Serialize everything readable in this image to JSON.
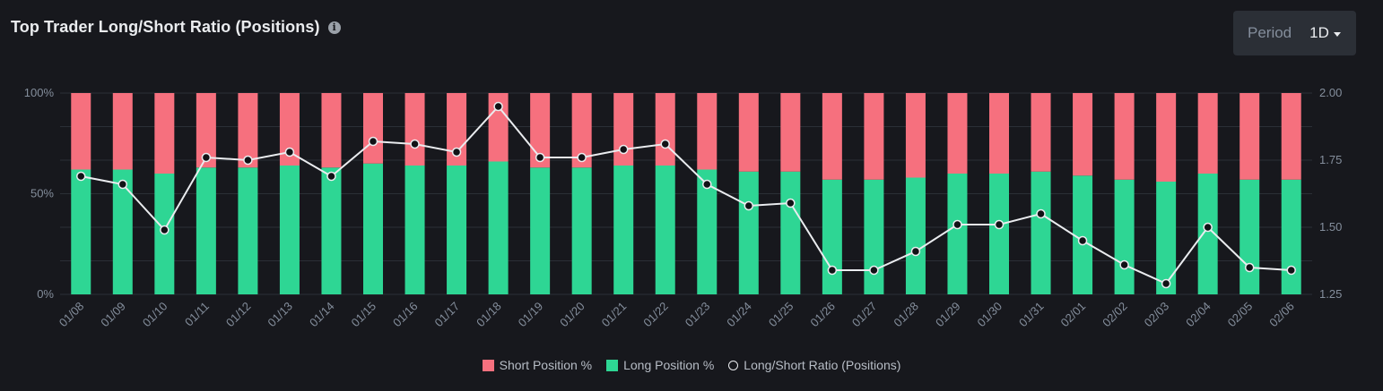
{
  "header": {
    "title": "Top Trader Long/Short Ratio (Positions)",
    "info_icon": "info-icon"
  },
  "period": {
    "label": "Period",
    "value": "1D",
    "caret_icon": "caret-down-icon"
  },
  "legend": {
    "short": "Short Position %",
    "long": "Long Position %",
    "ratio": "Long/Short Ratio (Positions)"
  },
  "colors": {
    "short": "#f6707e",
    "long": "#2ed694",
    "ratio_line": "#eaecef",
    "background": "#17181d"
  },
  "chart_data": {
    "type": "bar",
    "stacked": true,
    "categories": [
      "01/08",
      "01/09",
      "01/10",
      "01/11",
      "01/12",
      "01/13",
      "01/14",
      "01/15",
      "01/16",
      "01/17",
      "01/18",
      "01/19",
      "01/20",
      "01/21",
      "01/22",
      "01/23",
      "01/24",
      "01/25",
      "01/26",
      "01/27",
      "01/28",
      "01/29",
      "01/30",
      "01/31",
      "02/01",
      "02/02",
      "02/03",
      "02/04",
      "02/05",
      "02/06"
    ],
    "series": [
      {
        "name": "Long Position %",
        "axis": "left",
        "values": [
          62,
          62,
          60,
          63,
          63,
          64,
          63,
          65,
          64,
          64,
          66,
          63,
          63,
          64,
          64,
          62,
          61,
          61,
          57,
          57,
          58,
          60,
          60,
          61,
          59,
          57,
          56,
          60,
          57,
          57
        ]
      },
      {
        "name": "Short Position %",
        "axis": "left",
        "values": [
          38,
          38,
          40,
          37,
          37,
          36,
          37,
          35,
          36,
          36,
          34,
          37,
          37,
          36,
          36,
          38,
          39,
          39,
          43,
          43,
          42,
          40,
          40,
          39,
          41,
          43,
          44,
          40,
          43,
          43
        ]
      },
      {
        "name": "Long/Short Ratio (Positions)",
        "type": "line",
        "axis": "right",
        "values": [
          1.69,
          1.66,
          1.49,
          1.76,
          1.75,
          1.78,
          1.69,
          1.82,
          1.81,
          1.78,
          1.95,
          1.76,
          1.76,
          1.79,
          1.81,
          1.66,
          1.58,
          1.59,
          1.34,
          1.34,
          1.41,
          1.51,
          1.51,
          1.55,
          1.45,
          1.36,
          1.29,
          1.5,
          1.35,
          1.34
        ]
      }
    ],
    "y_left": {
      "ticks": [
        "0%",
        "50%",
        "100%"
      ],
      "range": [
        0,
        100
      ]
    },
    "y_right": {
      "ticks": [
        "1.25",
        "1.50",
        "1.75",
        "2.00"
      ],
      "range": [
        1.25,
        2.0
      ]
    },
    "grid": true,
    "legend_position": "bottom"
  }
}
